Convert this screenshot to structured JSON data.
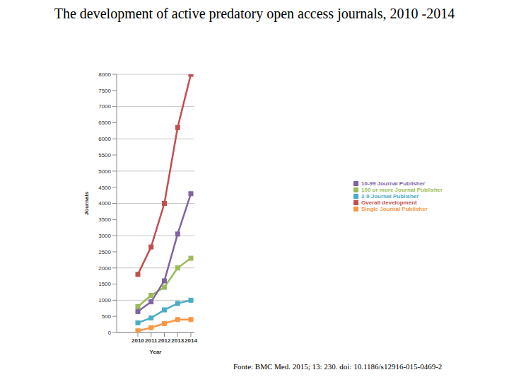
{
  "chart_data": {
    "type": "line",
    "title": "The development of active predatory open access journals, 2010 -2014",
    "x_label": "Year",
    "y_label": "Journals",
    "source": "Fonte: BMC Med. 2015; 13: 230. doi: 10.1186/s12916-015-0469-2",
    "categories": [
      "2010",
      "2011",
      "2012",
      "2013",
      "2014"
    ],
    "series": [
      {
        "name": "100 or more Journal Publisher",
        "color": "#9bbb59",
        "marker": "square",
        "values": [
          800,
          1150,
          1400,
          2000,
          2300
        ]
      },
      {
        "name": "10-99 Journal Publisher",
        "color": "#8064a2",
        "marker": "square",
        "values": [
          650,
          950,
          1600,
          3050,
          4300
        ]
      },
      {
        "name": "2-9 Journal Publisher",
        "color": "#4bacc6",
        "marker": "square",
        "values": [
          300,
          450,
          700,
          900,
          1000
        ]
      },
      {
        "name": "Single Journal Publisher",
        "color": "#f79646",
        "marker": "square",
        "values": [
          50,
          150,
          280,
          400,
          400
        ]
      },
      {
        "name": "Overall development",
        "color": "#c0504d",
        "marker": "square",
        "values": [
          1800,
          2650,
          4000,
          6350,
          8000
        ]
      }
    ],
    "ylim": [
      0,
      8000
    ],
    "yticks": [
      0,
      500,
      1000,
      1500,
      2000,
      2500,
      3000,
      3500,
      4000,
      4500,
      5000,
      5500,
      6000,
      6500,
      7000,
      7500,
      8000
    ],
    "grid": true,
    "legend": "right"
  }
}
